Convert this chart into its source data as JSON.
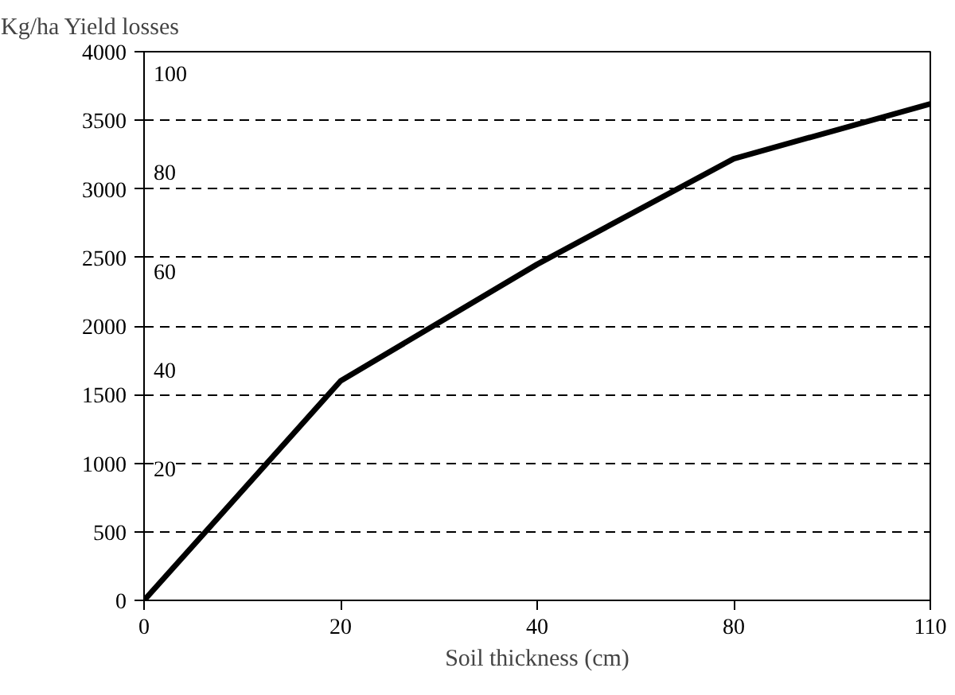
{
  "chart_data": {
    "type": "line",
    "ylabel": "Kg/ha Yield losses",
    "xlabel": "Soil thickness (cm)",
    "categories": [
      "0",
      "20",
      "40",
      "80",
      "110"
    ],
    "series": [
      {
        "color": "#000000",
        "values": [
          0,
          1600,
          2450,
          3220,
          3620
        ]
      }
    ],
    "ylim": [
      0,
      4000
    ],
    "yticks": [
      0,
      500,
      1000,
      1500,
      2000,
      2500,
      3000,
      3500,
      4000
    ],
    "grid": "y",
    "line_style": "solid",
    "annotations": [
      "100",
      "80",
      "60",
      "40",
      "20"
    ]
  }
}
